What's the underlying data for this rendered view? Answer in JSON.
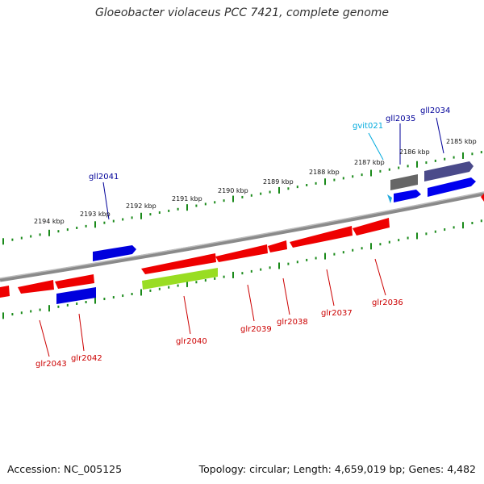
{
  "title": "Gloeobacter violaceus PCC 7421, complete genome",
  "footer": {
    "accession": "Accession: NC_005125",
    "summary": "Topology: circular; Length: 4,659,019 bp; Genes: 4,482"
  },
  "colors": {
    "backbone": "#808080",
    "forward_ticks": "#1a8a1a",
    "reverse_ticks": "#1a8a1a",
    "reverse_strand_gene": "#ee0000",
    "forward_strand_gene": "#0000dd",
    "label_reverse": "#cc0000",
    "label_forward": "#000099",
    "label_trna": "#00aadd",
    "rrna_like": "#666666",
    "dark_feature": "#444488",
    "highlight_gene": "#99dd22"
  },
  "scale_labels": [
    "2185 kbp",
    "2186 kbp",
    "2187 kbp",
    "2188 kbp",
    "2189 kbp",
    "2190 kbp",
    "2191 kbp",
    "2192 kbp",
    "2193 kbp",
    "2194 kbp"
  ],
  "genes": [
    {
      "name": "gll2034",
      "strand": "forward",
      "color": "dark"
    },
    {
      "name": "gll2035",
      "strand": "forward",
      "color": "gray"
    },
    {
      "name": "gvit021",
      "strand": "forward",
      "color": "trna"
    },
    {
      "name": "gll2041",
      "strand": "forward",
      "color": "blue"
    },
    {
      "name": "glr2036",
      "strand": "reverse",
      "color": "red"
    },
    {
      "name": "glr2037",
      "strand": "reverse",
      "color": "red"
    },
    {
      "name": "glr2038",
      "strand": "reverse",
      "color": "red"
    },
    {
      "name": "glr2039",
      "strand": "reverse",
      "color": "red"
    },
    {
      "name": "glr2040",
      "strand": "reverse",
      "color": "lime"
    },
    {
      "name": "glr2042",
      "strand": "reverse",
      "color": "blue"
    },
    {
      "name": "glr2043",
      "strand": "reverse",
      "color": "red"
    }
  ]
}
